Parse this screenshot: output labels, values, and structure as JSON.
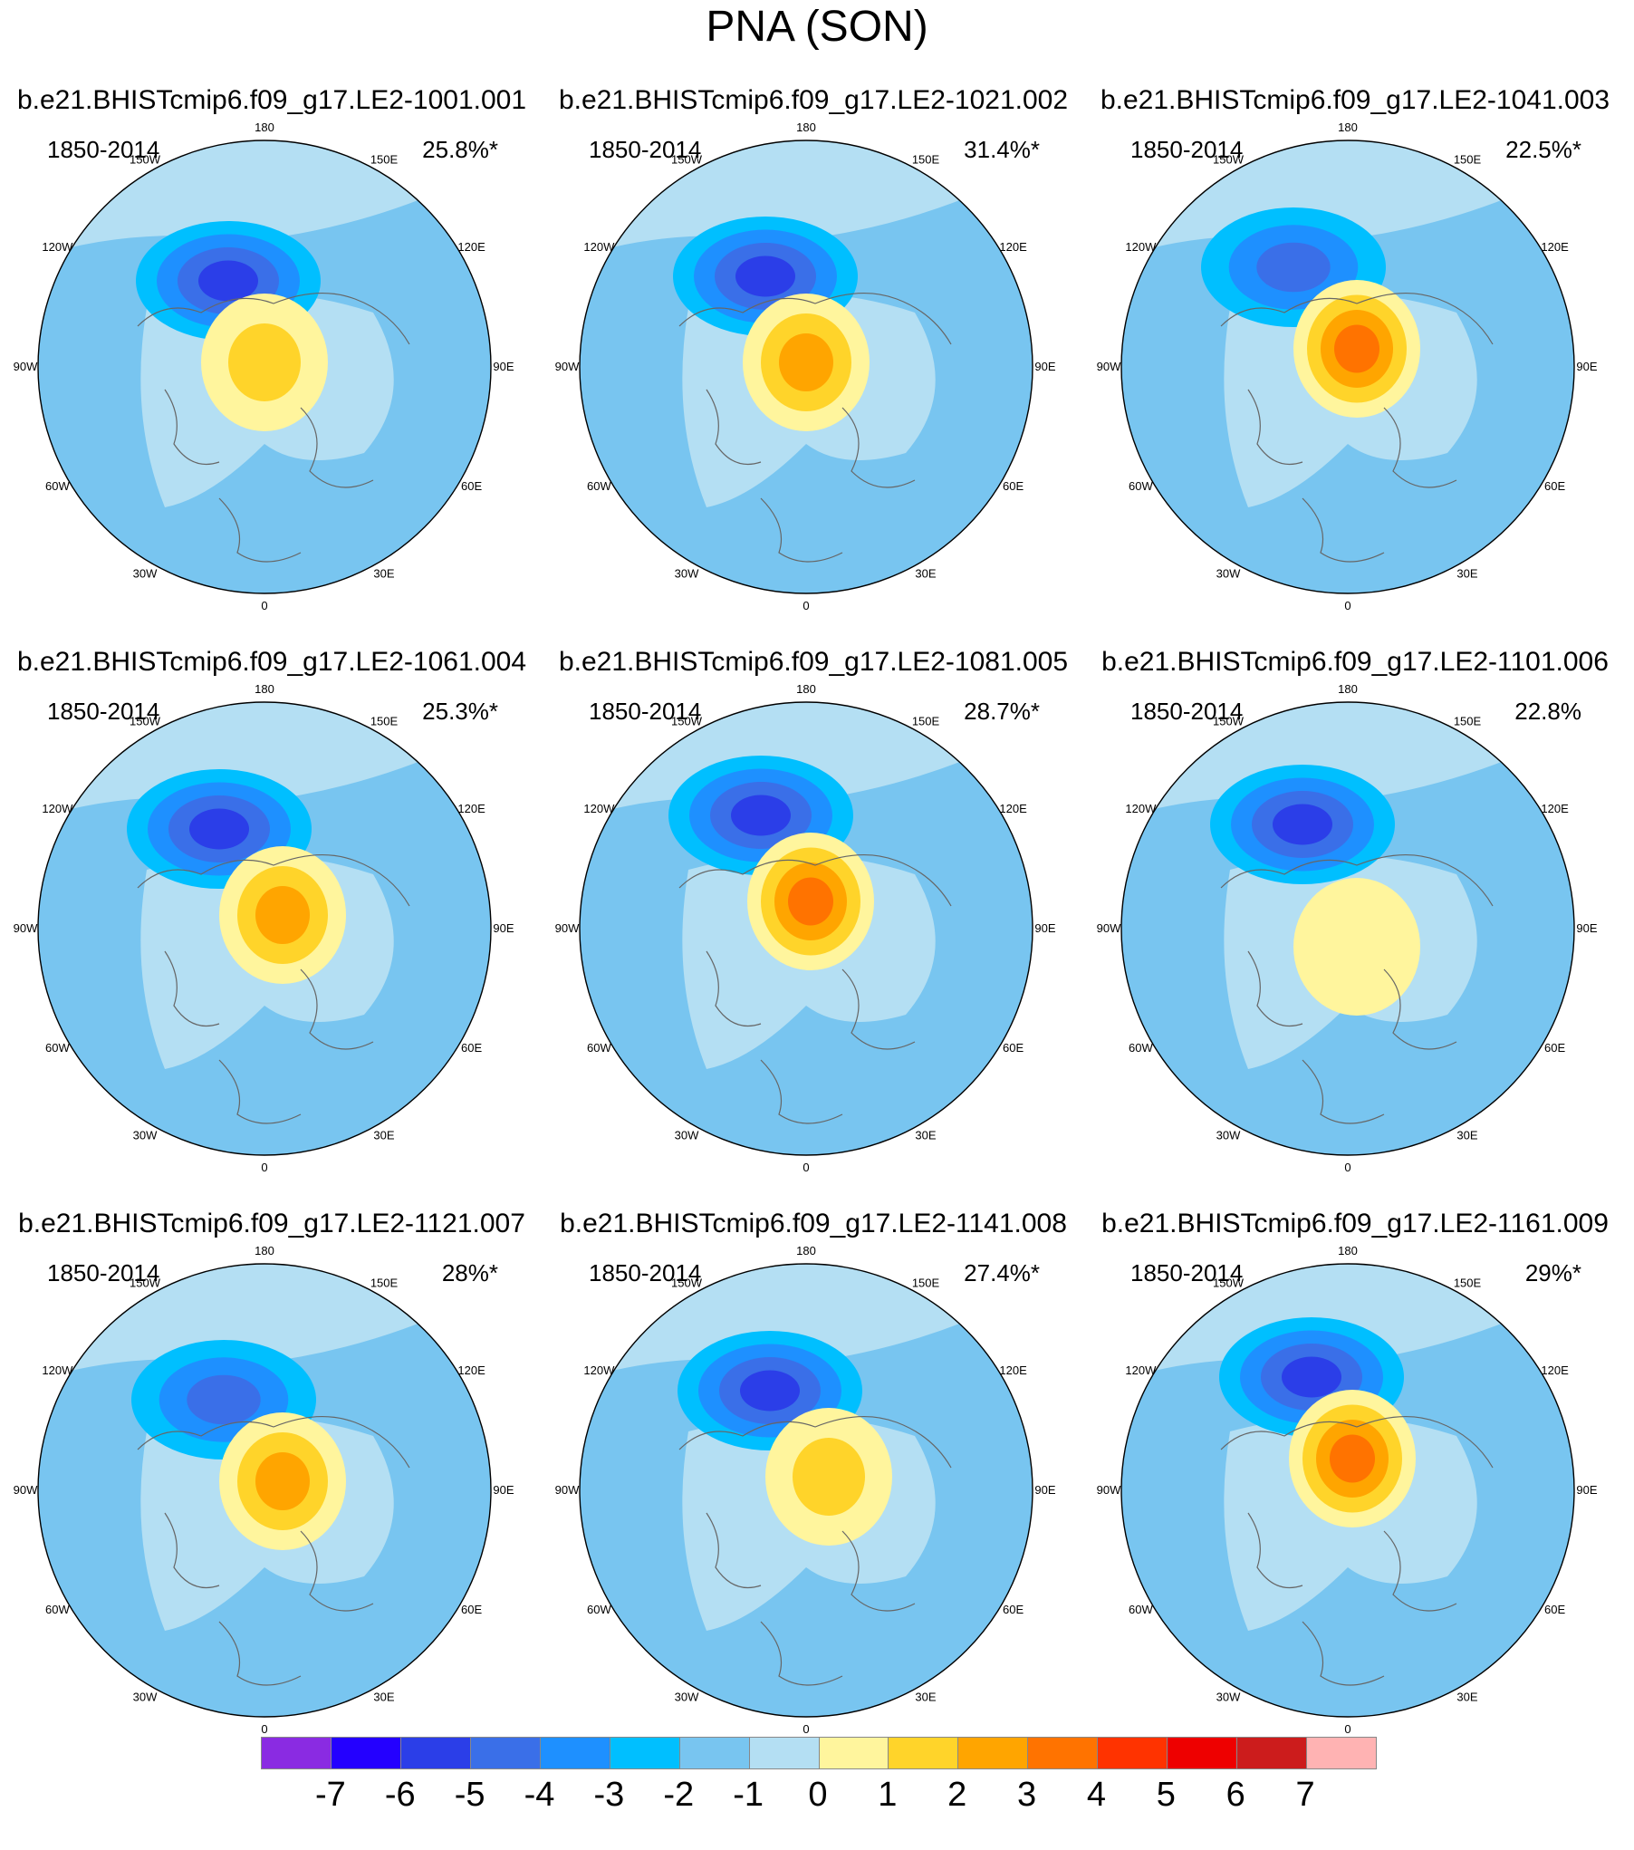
{
  "title": "PNA (SON)",
  "period": "1850-2014",
  "lon_labels": [
    "180",
    "150E",
    "120E",
    "90E",
    "60E",
    "30E",
    "0",
    "30W",
    "60W",
    "90W",
    "120W",
    "150W"
  ],
  "panels": [
    {
      "title": "b.e21.BHISTcmip6.f09_g17.LE2-1001.001",
      "pct": "25.8%*",
      "neg": {
        "min": -4,
        "dx": -40,
        "dy": -95
      },
      "pos": {
        "max": 2,
        "dx": 0,
        "dy": -5
      }
    },
    {
      "title": "b.e21.BHISTcmip6.f09_g17.LE2-1021.002",
      "pct": "31.4%*",
      "neg": {
        "min": -4,
        "dx": -45,
        "dy": -100
      },
      "pos": {
        "max": 3,
        "dx": 0,
        "dy": -5
      }
    },
    {
      "title": "b.e21.BHISTcmip6.f09_g17.LE2-1041.003",
      "pct": "22.5%*",
      "neg": {
        "min": -3,
        "dx": -60,
        "dy": -110
      },
      "pos": {
        "max": 4,
        "dx": 10,
        "dy": -20
      }
    },
    {
      "title": "b.e21.BHISTcmip6.f09_g17.LE2-1061.004",
      "pct": "25.3%*",
      "neg": {
        "min": -4,
        "dx": -50,
        "dy": -110
      },
      "pos": {
        "max": 3,
        "dx": 20,
        "dy": -15
      }
    },
    {
      "title": "b.e21.BHISTcmip6.f09_g17.LE2-1081.005",
      "pct": "28.7%*",
      "neg": {
        "min": -4,
        "dx": -50,
        "dy": -125
      },
      "pos": {
        "max": 4,
        "dx": 5,
        "dy": -30
      }
    },
    {
      "title": "b.e21.BHISTcmip6.f09_g17.LE2-1101.006",
      "pct": "22.8%",
      "neg": {
        "min": -4,
        "dx": -50,
        "dy": -115
      },
      "pos": {
        "max": 1,
        "dx": 10,
        "dy": 20
      }
    },
    {
      "title": "b.e21.BHISTcmip6.f09_g17.LE2-1121.007",
      "pct": "28%*",
      "neg": {
        "min": -3,
        "dx": -45,
        "dy": -100
      },
      "pos": {
        "max": 3,
        "dx": 20,
        "dy": -10
      }
    },
    {
      "title": "b.e21.BHISTcmip6.f09_g17.LE2-1141.008",
      "pct": "27.4%*",
      "neg": {
        "min": -4,
        "dx": -40,
        "dy": -110
      },
      "pos": {
        "max": 2,
        "dx": 25,
        "dy": -15
      }
    },
    {
      "title": "b.e21.BHISTcmip6.f09_g17.LE2-1161.009",
      "pct": "29%*",
      "neg": {
        "min": -4,
        "dx": -40,
        "dy": -125
      },
      "pos": {
        "max": 4,
        "dx": 5,
        "dy": -35
      }
    }
  ],
  "colorbar": {
    "labels": [
      "-7",
      "-6",
      "-5",
      "-4",
      "-3",
      "-2",
      "-1",
      "0",
      "1",
      "2",
      "3",
      "4",
      "5",
      "6",
      "7"
    ],
    "colors": [
      "#8a2be2",
      "#2400ff",
      "#2b3ee8",
      "#3a6fe8",
      "#1e90ff",
      "#00bfff",
      "#78c5f0",
      "#b4dff3",
      "#fff59d",
      "#ffd42a",
      "#ffa500",
      "#ff7300",
      "#ff3300",
      "#ee0000",
      "#cc1c1c",
      "#ffb3b3"
    ]
  }
}
